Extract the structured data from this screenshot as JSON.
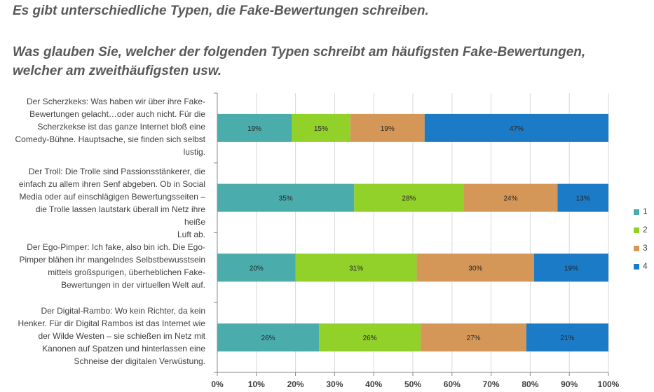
{
  "title": {
    "line1": "Es gibt unterschiedliche Typen, die Fake-Bewertungen schreiben.",
    "line2": "Was glauben Sie, welcher der folgenden Typen schreibt am häufigsten Fake-Bewertungen,",
    "line3": "welcher am zweithäufigsten usw."
  },
  "colors": {
    "1": "#4bacac",
    "2": "#92d02a",
    "3": "#d49758",
    "4": "#1b7bc6"
  },
  "chart_data": {
    "type": "bar",
    "orientation": "horizontal",
    "stacked": true,
    "categories": [
      "Der Scherzkeks: Was haben wir über ihre Fake-Bewertungen gelacht…oder auch nicht. Für die Scherzkekse ist das ganze Internet bloß eine Comedy-Bühne. Hauptsache, sie finden sich selbst lustig.",
      "Der Troll: Die Trolle sind Passionsstänkerer, die einfach zu allem ihren Senf abgeben. Ob in Social Media oder auf einschlägigen Bewertungsseiten – die Trolle lassen lautstark überall im Netz ihre heiße Luft ab.",
      "Der Ego-Pimper: Ich fake, also bin ich. Die Ego-Pimper blähen ihr mangelndes Selbstbewusstsein mittels großspurigen, überheblichen Fake-Bewertungen in der virtuellen Welt auf.",
      "Der Digital-Rambo: Wo kein Richter, da kein Henker. Für dir Digital Rambos ist das Internet wie der Wilde Westen – sie schießen im Netz mit Kanonen auf Spatzen und hinterlassen eine Schneise der digitalen Verwüstung."
    ],
    "category_lines": [
      [
        "Der Scherzkeks: Was haben wir über ihre Fake-",
        "Bewertungen gelacht…oder auch nicht. Für die",
        "Scherzkekse ist das ganze Internet bloß eine",
        "Comedy-Bühne. Hauptsache, sie finden sich selbst",
        "lustig."
      ],
      [
        "Der Troll: Die Trolle sind Passionsstänkerer, die",
        "einfach zu allem ihren Senf abgeben. Ob in Social",
        "Media oder auf einschlägigen Bewertungsseiten –",
        "die Trolle lassen lautstark überall im Netz ihre heiße",
        "Luft ab."
      ],
      [
        "Der Ego-Pimper: Ich fake, also bin ich. Die Ego-",
        "Pimper blähen ihr mangelndes Selbstbewusstsein",
        "mittels großspurigen, überheblichen Fake-",
        "Bewertungen in der virtuellen Welt auf."
      ],
      [
        "Der Digital-Rambo: Wo kein Richter, da kein",
        "Henker. Für dir Digital Rambos ist das Internet wie",
        "der Wilde Westen – sie schießen im Netz mit",
        "Kanonen auf Spatzen und hinterlassen eine",
        "Schneise der digitalen Verwüstung."
      ]
    ],
    "series": [
      {
        "name": "1",
        "values": [
          19,
          35,
          20,
          26
        ],
        "labels": [
          "19%",
          "35%",
          "20%",
          "26%"
        ]
      },
      {
        "name": "2",
        "values": [
          15,
          28,
          31,
          26
        ],
        "labels": [
          "15%",
          "28%",
          "31%",
          "26%"
        ]
      },
      {
        "name": "3",
        "values": [
          19,
          24,
          30,
          27
        ],
        "labels": [
          "19%",
          "24%",
          "30%",
          "27%"
        ]
      },
      {
        "name": "4",
        "values": [
          47,
          13,
          19,
          21
        ],
        "labels": [
          "47%",
          "13%",
          "19%",
          "21%"
        ]
      }
    ],
    "xlim": [
      0,
      100
    ],
    "xticks": [
      0,
      10,
      20,
      30,
      40,
      50,
      60,
      70,
      80,
      90,
      100
    ],
    "xtick_labels": [
      "0%",
      "10%",
      "20%",
      "30%",
      "40%",
      "50%",
      "60%",
      "70%",
      "80%",
      "90%",
      "100%"
    ],
    "grid": true,
    "legend": {
      "position": "right",
      "entries": [
        "1",
        "2",
        "3",
        "4"
      ]
    }
  }
}
